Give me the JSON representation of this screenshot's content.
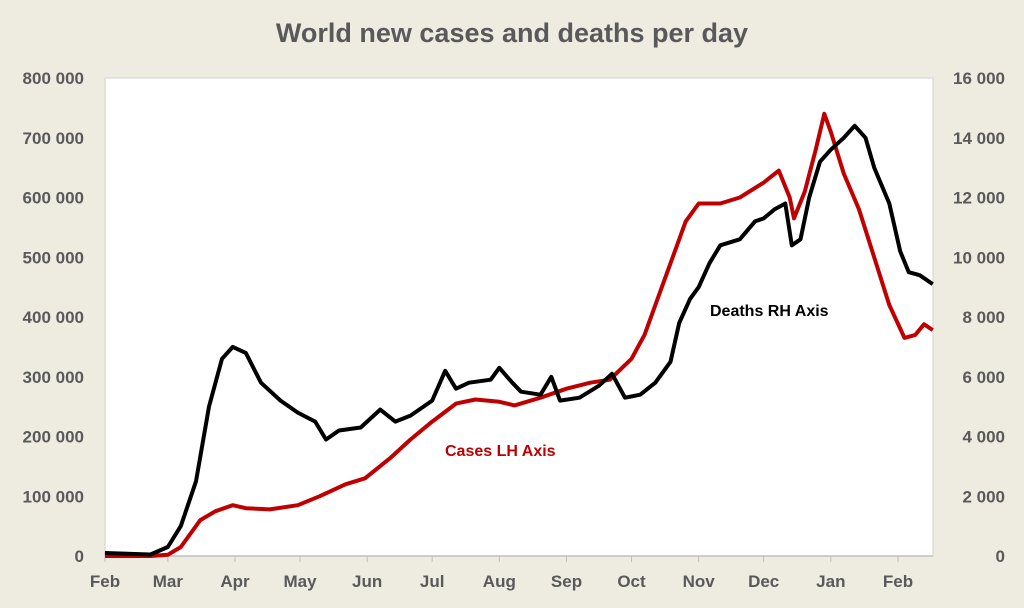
{
  "chart_data": {
    "type": "line",
    "title": "World new cases and deaths per day",
    "x_unit": "days since 1 Feb 2020",
    "x_ticks": [
      {
        "label": "Feb",
        "day": 0
      },
      {
        "label": "Mar",
        "day": 29
      },
      {
        "label": "Apr",
        "day": 60
      },
      {
        "label": "May",
        "day": 90
      },
      {
        "label": "Jun",
        "day": 121
      },
      {
        "label": "Jul",
        "day": 151
      },
      {
        "label": "Aug",
        "day": 182
      },
      {
        "label": "Sep",
        "day": 213
      },
      {
        "label": "Oct",
        "day": 243
      },
      {
        "label": "Nov",
        "day": 274
      },
      {
        "label": "Dec",
        "day": 304
      },
      {
        "label": "Jan",
        "day": 335
      },
      {
        "label": "Feb",
        "day": 366
      }
    ],
    "xlim": [
      0,
      382
    ],
    "y_left": {
      "ylim": [
        0,
        800000
      ],
      "ticks": [
        "0",
        "100 000",
        "200 000",
        "300 000",
        "400 000",
        "500 000",
        "600 000",
        "700 000",
        "800 000"
      ]
    },
    "y_right": {
      "ylim": [
        0,
        16000
      ],
      "ticks": [
        "0",
        "2 000",
        "4 000",
        "6 000",
        "8 000",
        "10 000",
        "12 000",
        "14 000",
        "16 000"
      ]
    },
    "grid": false,
    "series": [
      {
        "name": "Cases LH Axis",
        "axis": "left",
        "color": "#c00000",
        "x": [
          0,
          21,
          29,
          35,
          44,
          51,
          59,
          65,
          76,
          89,
          99,
          111,
          120,
          132,
          141,
          151,
          162,
          171,
          182,
          189,
          201,
          213,
          224,
          233,
          243,
          249,
          258,
          268,
          274,
          284,
          293,
          304,
          311,
          316,
          318,
          323,
          328,
          332,
          335,
          341,
          348,
          355,
          362,
          369,
          374,
          378,
          382
        ],
        "y": [
          0,
          0,
          2000,
          15000,
          60000,
          75000,
          85000,
          80000,
          78000,
          85000,
          100000,
          120000,
          130000,
          165000,
          195000,
          225000,
          255000,
          262000,
          258000,
          252000,
          265000,
          280000,
          290000,
          295000,
          330000,
          370000,
          460000,
          560000,
          590000,
          590000,
          600000,
          625000,
          645000,
          600000,
          565000,
          610000,
          680000,
          740000,
          710000,
          640000,
          580000,
          500000,
          420000,
          365000,
          370000,
          388000,
          378000
        ]
      },
      {
        "name": "Deaths RH Axis",
        "axis": "right",
        "color": "#000000",
        "x": [
          0,
          21,
          29,
          35,
          42,
          48,
          54,
          59,
          65,
          72,
          81,
          89,
          97,
          102,
          108,
          118,
          127,
          134,
          141,
          151,
          157,
          162,
          168,
          178,
          182,
          188,
          192,
          201,
          206,
          210,
          219,
          228,
          234,
          240,
          247,
          254,
          261,
          265,
          270,
          274,
          279,
          284,
          293,
          300,
          304,
          309,
          314,
          317,
          321,
          325,
          330,
          335,
          341,
          346,
          351,
          355,
          362,
          367,
          371,
          376,
          382
        ],
        "y": [
          100,
          50,
          300,
          1000,
          2500,
          5000,
          6600,
          7000,
          6800,
          5800,
          5200,
          4800,
          4500,
          3900,
          4200,
          4300,
          4900,
          4500,
          4700,
          5200,
          6200,
          5600,
          5800,
          5900,
          6300,
          5800,
          5500,
          5400,
          6000,
          5200,
          5300,
          5700,
          6100,
          5300,
          5400,
          5800,
          6500,
          7800,
          8600,
          9000,
          9800,
          10400,
          10600,
          11200,
          11300,
          11600,
          11800,
          10400,
          10600,
          12000,
          13200,
          13600,
          14000,
          14400,
          14000,
          13000,
          11800,
          10200,
          9500,
          9400,
          9100
        ]
      }
    ],
    "annotations": [
      {
        "text": "Deaths RH Axis",
        "series": "Deaths RH Axis"
      },
      {
        "text": "Cases LH Axis",
        "series": "Cases LH Axis"
      }
    ]
  }
}
